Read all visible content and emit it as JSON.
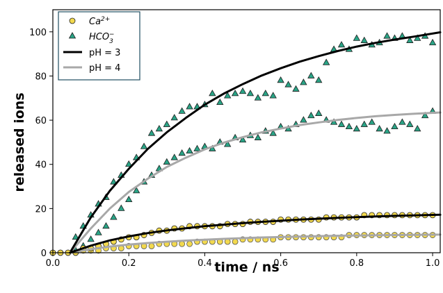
{
  "chart_data": {
    "type": "scatter",
    "xlabel": "time / ns",
    "ylabel": "released ions",
    "xlim": [
      0,
      1.02
    ],
    "ylim": [
      0,
      110
    ],
    "xticks": [
      "0.0",
      "0.2",
      "0.4",
      "0.6",
      "0.8",
      "1.0"
    ],
    "yticks": [
      "0",
      "20",
      "40",
      "60",
      "80",
      "100"
    ],
    "legend_position": "top-left",
    "colors": {
      "calcium": "#f2d94e",
      "bicarbonate": "#2aa486",
      "ph3": "#000000",
      "ph4": "#a8a8a8"
    },
    "legend": [
      {
        "label": "Ca",
        "sup": "2+",
        "sub": "",
        "marker": "circle"
      },
      {
        "label": "HCO",
        "sup": "−",
        "sub": "3",
        "marker": "triangle"
      },
      {
        "label": "pH = 3",
        "marker": "line-black"
      },
      {
        "label": "pH = 4",
        "marker": "line-gray"
      }
    ],
    "series": [
      {
        "name": "Ca2+ pH = 3",
        "marker": "circle",
        "x": [
          0.0,
          0.02,
          0.04,
          0.06,
          0.08,
          0.1,
          0.12,
          0.14,
          0.16,
          0.18,
          0.2,
          0.22,
          0.24,
          0.26,
          0.28,
          0.3,
          0.32,
          0.34,
          0.36,
          0.38,
          0.4,
          0.42,
          0.44,
          0.46,
          0.48,
          0.5,
          0.52,
          0.54,
          0.56,
          0.58,
          0.6,
          0.62,
          0.64,
          0.66,
          0.68,
          0.7,
          0.72,
          0.74,
          0.76,
          0.78,
          0.8,
          0.82,
          0.84,
          0.86,
          0.88,
          0.9,
          0.92,
          0.94,
          0.96,
          0.98,
          1.0
        ],
        "y": [
          0,
          0,
          0,
          0,
          2,
          2,
          3,
          4,
          5,
          6,
          7,
          7,
          8,
          9,
          10,
          10,
          11,
          11,
          12,
          12,
          12,
          12,
          12,
          13,
          13,
          13,
          14,
          14,
          14,
          14,
          15,
          15,
          15,
          15,
          15,
          15,
          16,
          16,
          16,
          16,
          16,
          17,
          17,
          17,
          17,
          17,
          17,
          17,
          17,
          17,
          17
        ]
      },
      {
        "name": "Ca2+ pH = 4",
        "marker": "circle",
        "x": [
          0.0,
          0.02,
          0.04,
          0.06,
          0.08,
          0.1,
          0.12,
          0.14,
          0.16,
          0.18,
          0.2,
          0.22,
          0.24,
          0.26,
          0.28,
          0.3,
          0.32,
          0.34,
          0.36,
          0.38,
          0.4,
          0.42,
          0.44,
          0.46,
          0.48,
          0.5,
          0.52,
          0.54,
          0.56,
          0.58,
          0.6,
          0.62,
          0.64,
          0.66,
          0.68,
          0.7,
          0.72,
          0.74,
          0.76,
          0.78,
          0.8,
          0.82,
          0.84,
          0.86,
          0.88,
          0.9,
          0.92,
          0.94,
          0.96,
          0.98,
          1.0
        ],
        "y": [
          0,
          0,
          0,
          0,
          1,
          1,
          1,
          2,
          2,
          2,
          3,
          3,
          3,
          3,
          4,
          4,
          4,
          4,
          4,
          5,
          5,
          5,
          5,
          5,
          5,
          6,
          6,
          6,
          6,
          6,
          7,
          7,
          7,
          7,
          7,
          7,
          7,
          7,
          7,
          8,
          8,
          8,
          8,
          8,
          8,
          8,
          8,
          8,
          8,
          8,
          8
        ]
      },
      {
        "name": "HCO3- pH = 3",
        "marker": "triangle",
        "x": [
          0.06,
          0.08,
          0.1,
          0.12,
          0.14,
          0.16,
          0.18,
          0.2,
          0.22,
          0.24,
          0.26,
          0.28,
          0.3,
          0.32,
          0.34,
          0.36,
          0.38,
          0.4,
          0.42,
          0.44,
          0.46,
          0.48,
          0.5,
          0.52,
          0.54,
          0.56,
          0.58,
          0.6,
          0.62,
          0.64,
          0.66,
          0.68,
          0.7,
          0.72,
          0.74,
          0.76,
          0.78,
          0.8,
          0.82,
          0.84,
          0.86,
          0.88,
          0.9,
          0.92,
          0.94,
          0.96,
          0.98,
          1.0
        ],
        "y": [
          7,
          12,
          17,
          22,
          25,
          32,
          35,
          40,
          43,
          48,
          54,
          56,
          58,
          61,
          64,
          66,
          66,
          67,
          72,
          68,
          71,
          72,
          73,
          72,
          70,
          72,
          71,
          78,
          76,
          74,
          77,
          80,
          78,
          86,
          92,
          94,
          92,
          97,
          96,
          94,
          95,
          98,
          97,
          98,
          96,
          97,
          98,
          95
        ]
      },
      {
        "name": "HCO3- pH = 4",
        "marker": "triangle",
        "x": [
          0.06,
          0.08,
          0.1,
          0.12,
          0.14,
          0.16,
          0.18,
          0.2,
          0.22,
          0.24,
          0.26,
          0.28,
          0.3,
          0.32,
          0.34,
          0.36,
          0.38,
          0.4,
          0.42,
          0.44,
          0.46,
          0.48,
          0.5,
          0.52,
          0.54,
          0.56,
          0.58,
          0.6,
          0.62,
          0.64,
          0.66,
          0.68,
          0.7,
          0.72,
          0.74,
          0.76,
          0.78,
          0.8,
          0.82,
          0.84,
          0.86,
          0.88,
          0.9,
          0.92,
          0.94,
          0.96,
          0.98,
          1.0
        ],
        "y": [
          1,
          3,
          6,
          9,
          12,
          16,
          20,
          24,
          28,
          32,
          35,
          38,
          41,
          43,
          45,
          46,
          47,
          48,
          47,
          50,
          49,
          52,
          51,
          53,
          52,
          55,
          54,
          57,
          56,
          58,
          60,
          62,
          63,
          60,
          59,
          58,
          57,
          56,
          58,
          59,
          56,
          55,
          57,
          59,
          58,
          56,
          62,
          64
        ]
      },
      {
        "name": "pH = 3",
        "type": "line",
        "x": [
          0.045,
          0.1,
          0.15,
          0.2,
          0.25,
          0.3,
          0.35,
          0.4,
          0.45,
          0.5,
          0.55,
          0.6,
          0.65,
          0.7,
          0.75,
          0.8,
          0.85,
          0.9,
          0.95,
          1.02
        ],
        "y": [
          0,
          16,
          28,
          38,
          47,
          54.5,
          61,
          67,
          72,
          76.3,
          80.2,
          83.5,
          86.5,
          89,
          91.3,
          93.3,
          95,
          96.5,
          97.8,
          99.8
        ]
      },
      {
        "name": "pH = 4",
        "type": "line",
        "x": [
          0.045,
          0.1,
          0.15,
          0.2,
          0.25,
          0.3,
          0.35,
          0.4,
          0.45,
          0.5,
          0.55,
          0.6,
          0.65,
          0.7,
          0.75,
          0.8,
          0.85,
          0.9,
          0.95,
          1.02
        ],
        "y": [
          0,
          11,
          20,
          27.5,
          33.5,
          38.8,
          43,
          46.8,
          49.8,
          52.3,
          54.5,
          56.2,
          57.8,
          59,
          60.1,
          61,
          61.8,
          62.4,
          62.9,
          63.5
        ]
      },
      {
        "name": "Ca2+ fit pH = 3",
        "type": "line",
        "x": [
          0.045,
          0.1,
          0.15,
          0.2,
          0.25,
          0.3,
          0.35,
          0.4,
          0.45,
          0.5,
          0.55,
          0.6,
          0.65,
          0.7,
          0.75,
          0.8,
          0.85,
          0.9,
          0.95,
          1.02
        ],
        "y": [
          0,
          3.2,
          5.6,
          7.4,
          8.9,
          10.1,
          11.1,
          12,
          12.7,
          13.4,
          14,
          14.5,
          15,
          15.4,
          15.8,
          16.1,
          16.4,
          16.7,
          16.9,
          17.2
        ]
      },
      {
        "name": "Ca2+ fit pH = 4",
        "type": "line",
        "x": [
          0.045,
          0.1,
          0.15,
          0.2,
          0.25,
          0.3,
          0.35,
          0.4,
          0.45,
          0.5,
          0.55,
          0.6,
          0.65,
          0.7,
          0.75,
          0.8,
          0.85,
          0.9,
          0.95,
          1.02
        ],
        "y": [
          0,
          1.6,
          2.8,
          3.7,
          4.4,
          5,
          5.5,
          5.9,
          6.3,
          6.6,
          6.9,
          7.1,
          7.3,
          7.5,
          7.7,
          7.8,
          7.9,
          8,
          8.1,
          8.2
        ]
      }
    ]
  }
}
